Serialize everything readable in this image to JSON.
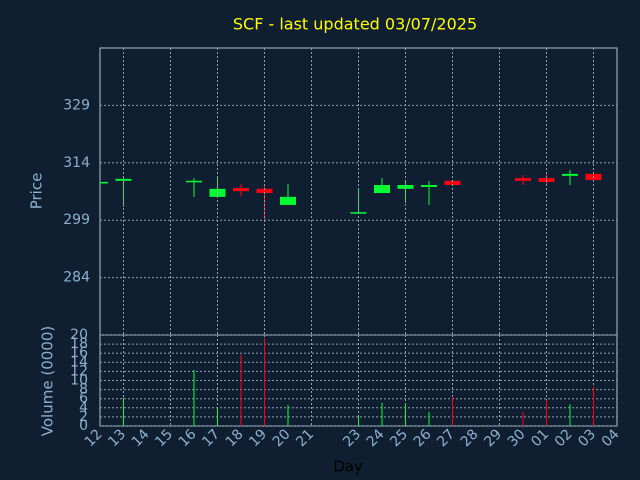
{
  "chart_data": [
    {
      "type": "candlestick",
      "title": "SCF - last updated 03/07/2025",
      "y_label": "Price",
      "open": [
        308.8,
        309.3,
        null,
        null,
        308.9,
        305.1,
        307.4,
        307.2,
        303.0,
        null,
        null,
        300.9,
        306.1,
        307.2,
        307.7,
        309.3,
        null,
        null,
        310.0,
        310.0,
        310.6,
        311.1,
        null
      ],
      "high": [
        309.2,
        310.3,
        null,
        null,
        310.0,
        310.0,
        308.5,
        307.9,
        308.5,
        null,
        null,
        307.2,
        310.0,
        309.4,
        309.3,
        309.5,
        null,
        null,
        310.8,
        311.6,
        312.1,
        311.3,
        null
      ],
      "low": [
        308.6,
        302.5,
        null,
        null,
        305.1,
        305.1,
        305.3,
        299.1,
        303.0,
        null,
        null,
        300.9,
        306.1,
        303.5,
        303.0,
        307.9,
        null,
        null,
        308.2,
        308.2,
        308.2,
        309.0,
        null
      ],
      "close": [
        309.0,
        309.8,
        null,
        null,
        309.3,
        307.2,
        306.6,
        306.1,
        305.1,
        null,
        null,
        301.1,
        308.2,
        308.2,
        308.2,
        308.2,
        null,
        null,
        309.3,
        309.0,
        311.1,
        309.5,
        null
      ],
      "up_color": "#00ff33",
      "down_color": "#ff0011",
      "ylim": [
        269,
        344
      ],
      "yticks": [
        284,
        299,
        314,
        329
      ],
      "grid": true
    },
    {
      "type": "bar",
      "y_label": "Volume (0000)",
      "x_label": "Day",
      "categories": [
        "12",
        "13",
        "14",
        "15",
        "16",
        "17",
        "18",
        "19",
        "20",
        "21",
        null,
        "23",
        "24",
        "25",
        "26",
        "27",
        "28",
        "29",
        "30",
        "01",
        "02",
        "03",
        "04"
      ],
      "values": [
        null,
        6.2,
        null,
        null,
        12.3,
        4.0,
        15.6,
        19.3,
        4.6,
        null,
        null,
        2.0,
        5.1,
        4.8,
        3.1,
        6.4,
        null,
        null,
        3.1,
        5.7,
        4.8,
        8.6,
        null
      ],
      "ylim": [
        0,
        20
      ],
      "yticks": [
        0,
        2,
        4,
        6,
        8,
        10,
        12,
        14,
        16,
        18,
        20
      ],
      "grid": true
    }
  ]
}
